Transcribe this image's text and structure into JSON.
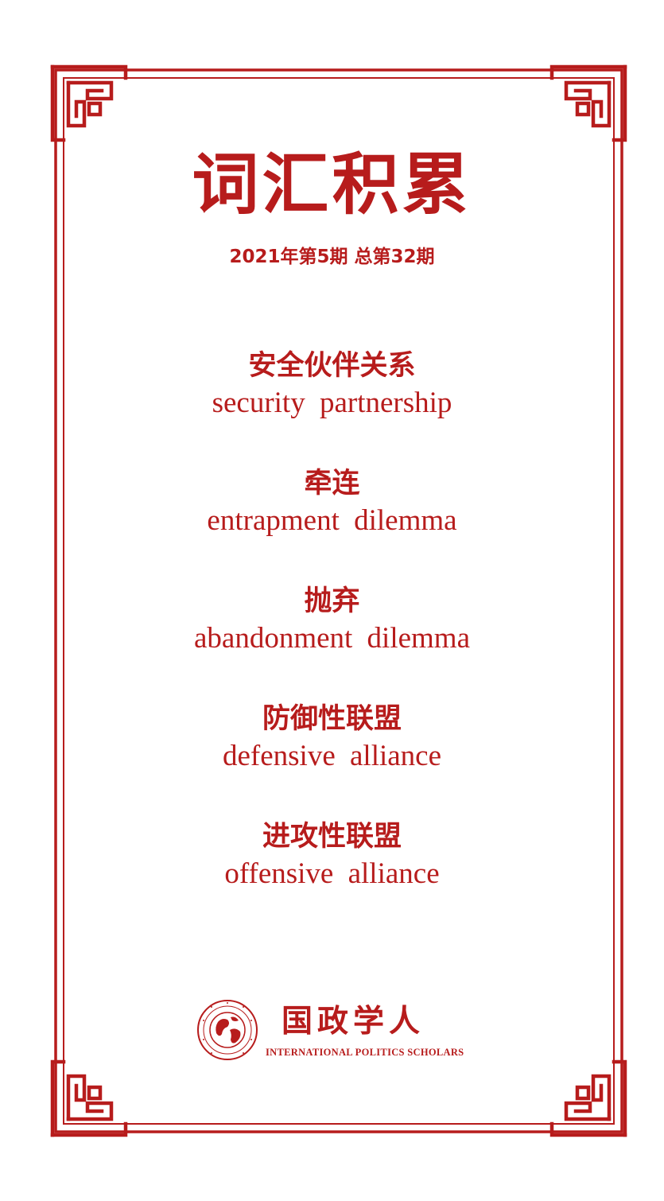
{
  "theme": {
    "accent": "#b71c1c",
    "background": "#ffffff"
  },
  "header": {
    "title": "词汇积累",
    "issue": "2021年第5期  总第32期"
  },
  "terms": [
    {
      "zh": "安全伙伴关系",
      "en": "security  partnership"
    },
    {
      "zh": "牵连",
      "en": "entrapment  dilemma"
    },
    {
      "zh": "抛弃",
      "en": "abandonment  dilemma"
    },
    {
      "zh": "防御性联盟",
      "en": "defensive  alliance"
    },
    {
      "zh": "进攻性联盟",
      "en": "offensive  alliance"
    }
  ],
  "brand": {
    "name_zh": "国政学人",
    "name_en": "INTERNATIONAL POLITICS SCHOLARS",
    "emblem": "globe-seal-logo"
  }
}
